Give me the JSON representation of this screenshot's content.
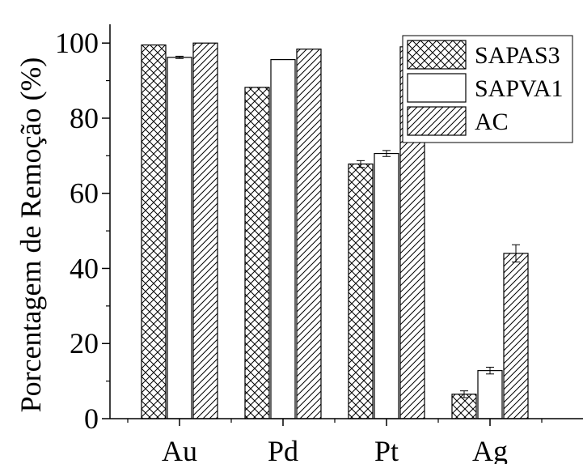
{
  "chart_data": {
    "type": "bar",
    "title": "",
    "xlabel": "",
    "ylabel": "Porcentagem de Remoção (%)",
    "categories": [
      "Au",
      "Pd",
      "Pt",
      "Ag"
    ],
    "ylim": [
      0,
      105
    ],
    "yticks": [
      "0",
      "20",
      "40",
      "60",
      "80",
      "100"
    ],
    "legend_position": "top-right",
    "grid": false,
    "series": [
      {
        "name": "SAPAS3",
        "pattern": "cross-hatch",
        "values": [
          99.5,
          88.2,
          67.8,
          6.5
        ],
        "errors": [
          0,
          0,
          0.9,
          0.9
        ]
      },
      {
        "name": "SAPVA1",
        "pattern": "none",
        "values": [
          96.2,
          95.6,
          70.6,
          12.8
        ],
        "errors": [
          0.3,
          0,
          0.8,
          0.9
        ]
      },
      {
        "name": "AC",
        "pattern": "diagonal",
        "values": [
          100.0,
          98.4,
          99.0,
          44.0
        ],
        "errors": [
          0,
          0,
          0.3,
          2.3
        ]
      }
    ]
  }
}
